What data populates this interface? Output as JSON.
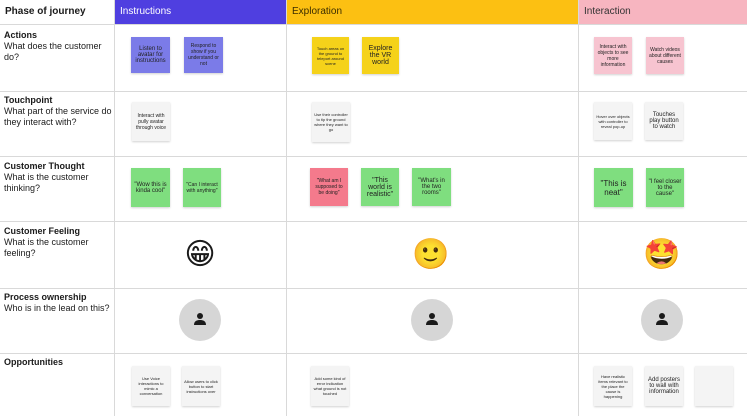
{
  "header": {
    "corner_label": "Phase of journey",
    "phases": [
      {
        "label": "Instructions",
        "color": "#4f3fe0",
        "text_color": "#ffffff"
      },
      {
        "label": "Exploration",
        "color": "#fcc012",
        "text_color": "#3a2c00"
      },
      {
        "label": "Interaction",
        "color": "#f7b5c0",
        "text_color": "#333333"
      }
    ]
  },
  "rows": [
    {
      "title": "Actions",
      "subtitle": "What does the customer do?"
    },
    {
      "title": "Touchpoint",
      "subtitle": "What part of the service do they interact with?"
    },
    {
      "title": "Customer Thought",
      "subtitle": "What is the customer thinking?"
    },
    {
      "title": "Customer Feeling",
      "subtitle": "What is the customer feeling?"
    },
    {
      "title": "Process ownership",
      "subtitle": "Who is in the lead on this?"
    },
    {
      "title": "Opportunities",
      "subtitle": ""
    }
  ],
  "stickies": {
    "actions_1": "Listen to avatar for instructions",
    "actions_2": "Respond to show if you understand or not",
    "actions_3": "Touch areas on the ground to teleport around scene",
    "actions_4": "Explore the VR world",
    "actions_5": "Interact with objects to see more information",
    "actions_6": "Watch videos about different causes",
    "touch_1": "Interact with pully avatar through voice",
    "touch_2": "Use their controller to tip the ground where they want to go",
    "touch_3": "Hover over objects with controller to reveal pop-up",
    "touch_4": "Touches play button to watch",
    "thought_1": "\"Wow this is kinda cool\"",
    "thought_2": "\"Can I interact with anything\"",
    "thought_3": "\"What am I supposed to be doing\"",
    "thought_4": "\"This world is realistic\"",
    "thought_5": "\"What's in the two rooms\"",
    "thought_6": "\"This is neat\"",
    "thought_7": "\"I feel closer to the cause\"",
    "opp_1": "Use Voice interactions to mimic a conversation",
    "opp_2": "Allow users to click button to start instructions over",
    "opp_3": "Add some kind of error indication what ground is not touched",
    "opp_4": "Have realistic items relevant to the place the cause is happening",
    "opp_5": "Add posters to wall with information",
    "opp_6": ""
  },
  "feelings": {
    "instructions": "😁",
    "exploration": "🙂",
    "interaction": "🤩"
  },
  "colors": {
    "sticky_purple": "#7b7be8",
    "sticky_yellow": "#f5d21a",
    "sticky_pink": "#f7c4d0",
    "sticky_green": "#7fde7f",
    "sticky_red": "#f47a8c",
    "sticky_white": "#f4f4f4",
    "avatar_gray": "#d6d6d6"
  }
}
